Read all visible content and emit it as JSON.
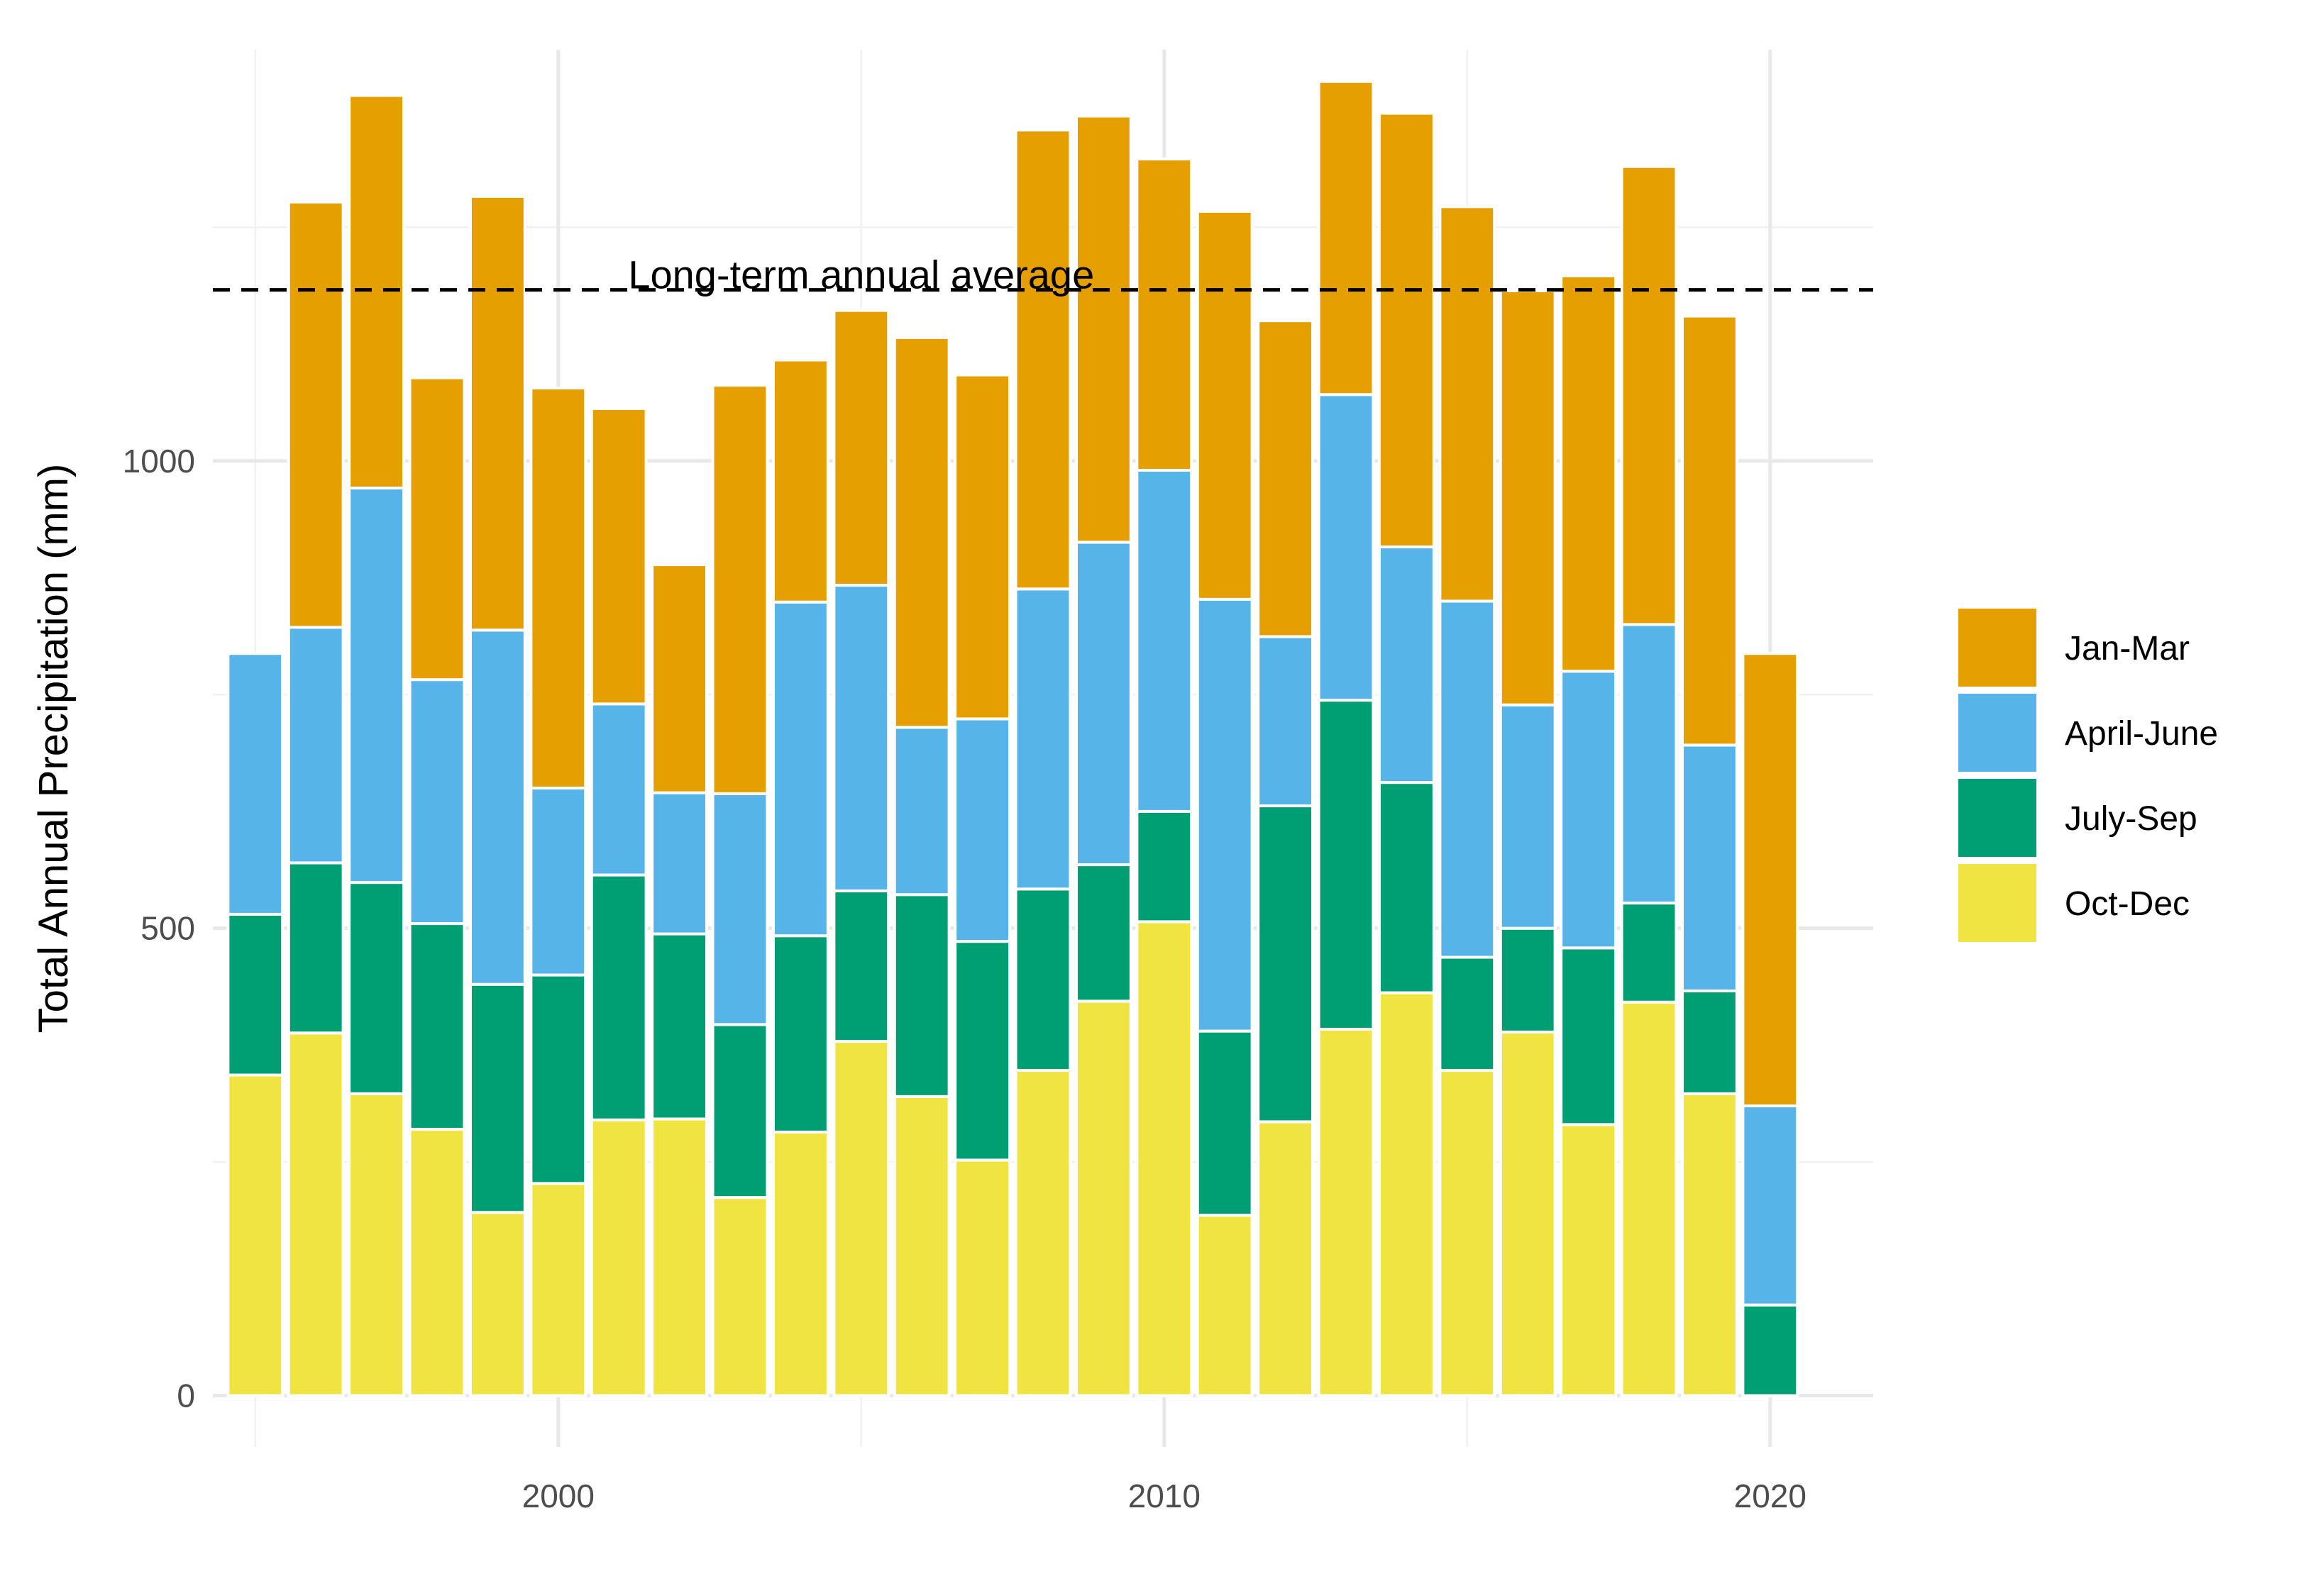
{
  "chart_data": {
    "type": "bar",
    "stacked": true,
    "title": "",
    "xlabel": "",
    "ylabel": "Total Annual Precipitation (mm)",
    "x": [
      1995,
      1996,
      1997,
      1998,
      1999,
      2000,
      2001,
      2002,
      2003,
      2004,
      2005,
      2006,
      2007,
      2008,
      2009,
      2010,
      2011,
      2012,
      2013,
      2014,
      2015,
      2016,
      2017,
      2018,
      2019,
      2020
    ],
    "xticks": [
      2000,
      2010,
      2020
    ],
    "yticks": [
      0,
      500,
      1000
    ],
    "xlim": [
      1994.3,
      2021.7
    ],
    "ylim": [
      -55,
      1440
    ],
    "grid": true,
    "legend_position": "right",
    "series": [
      {
        "name": "Oct-Dec",
        "color": "#F0E442",
        "values": [
          343,
          388,
          323,
          285,
          196,
          227,
          295,
          296,
          212,
          282,
          379,
          320,
          252,
          348,
          422,
          507,
          193,
          293,
          392,
          431,
          348,
          389,
          290,
          421,
          323,
          0
        ]
      },
      {
        "name": "July-Sep",
        "color": "#009E73",
        "values": [
          172,
          182,
          226,
          220,
          244,
          223,
          262,
          198,
          185,
          210,
          161,
          216,
          234,
          194,
          146,
          118,
          197,
          338,
          352,
          225,
          121,
          111,
          189,
          106,
          110,
          97
        ]
      },
      {
        "name": "April-June",
        "color": "#56B4E9",
        "values": [
          279,
          252,
          422,
          261,
          379,
          200,
          183,
          151,
          247,
          357,
          327,
          179,
          238,
          321,
          345,
          365,
          462,
          181,
          327,
          252,
          381,
          239,
          296,
          298,
          263,
          213
        ]
      },
      {
        "name": "Jan-Mar",
        "color": "#E69F00",
        "values": [
          0,
          455,
          420,
          323,
          464,
          428,
          316,
          244,
          437,
          259,
          294,
          417,
          368,
          491,
          456,
          333,
          415,
          338,
          335,
          464,
          422,
          443,
          423,
          490,
          459,
          484
        ]
      }
    ],
    "legend_order": [
      "Jan-Mar",
      "April-June",
      "July-Sep",
      "Oct-Dec"
    ],
    "reference_line": {
      "label": "Long-term annual average",
      "value": 1183,
      "style": "dashed"
    }
  }
}
